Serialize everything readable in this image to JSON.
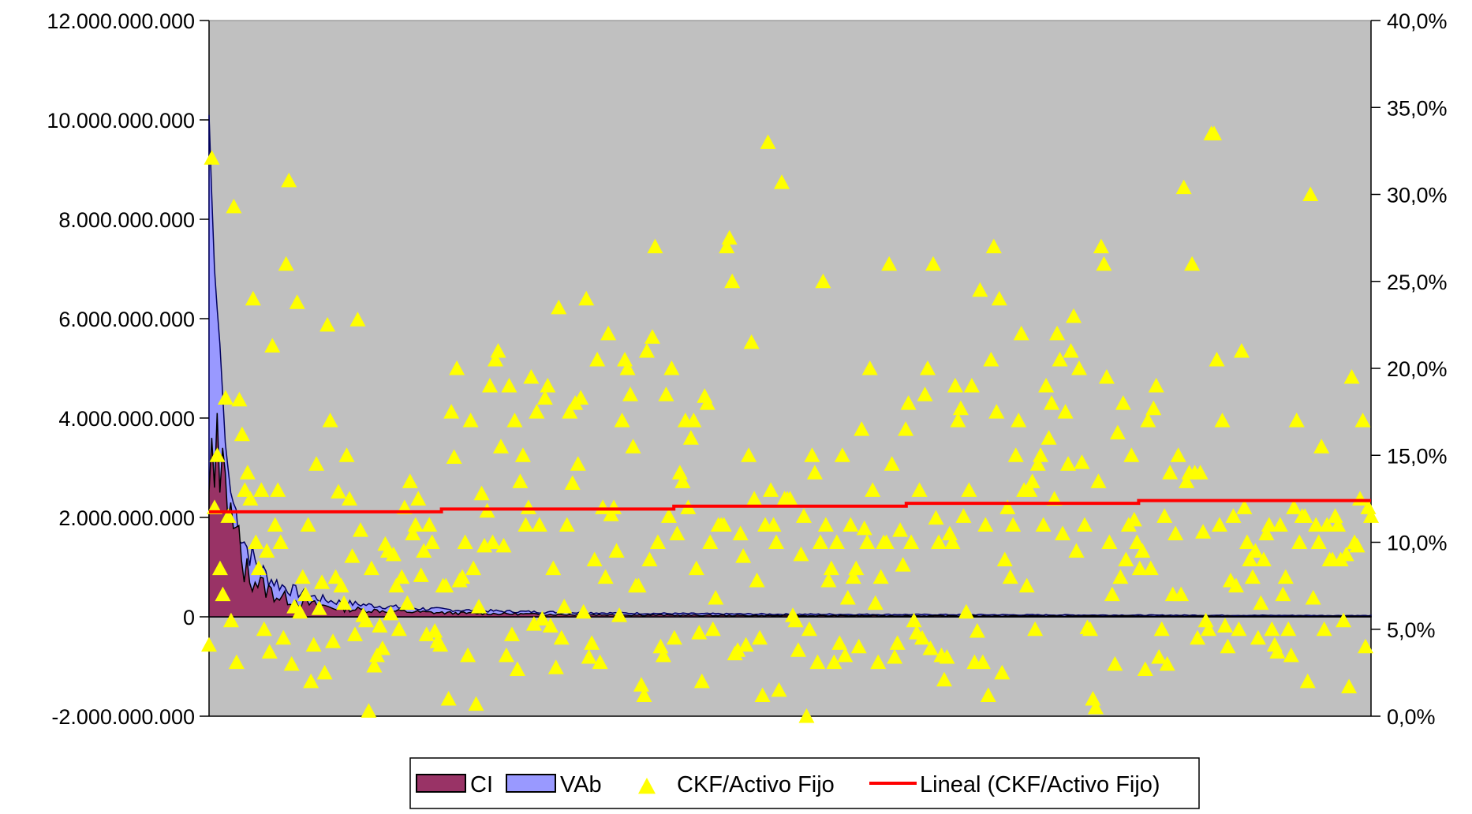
{
  "chart_data": {
    "type": "area",
    "plot_background": "#c0c0c0",
    "left_axis": {
      "ylim": [
        -2000000000,
        12000000000
      ],
      "ticks": [
        {
          "value": -2000000000,
          "label": "-2.000.000.000"
        },
        {
          "value": 0,
          "label": "0"
        },
        {
          "value": 2000000000,
          "label": "2.000.000.000"
        },
        {
          "value": 4000000000,
          "label": "4.000.000.000"
        },
        {
          "value": 6000000000,
          "label": "6.000.000.000"
        },
        {
          "value": 8000000000,
          "label": "8.000.000.000"
        },
        {
          "value": 10000000000,
          "label": "10.000.000.000"
        },
        {
          "value": 12000000000,
          "label": "12.000.000.000"
        }
      ]
    },
    "right_axis": {
      "ylim": [
        0,
        40
      ],
      "ticks": [
        {
          "value": 0,
          "label": "0,0%"
        },
        {
          "value": 5,
          "label": "5,0%"
        },
        {
          "value": 10,
          "label": "10,0%"
        },
        {
          "value": 15,
          "label": "15,0%"
        },
        {
          "value": 20,
          "label": "20,0%"
        },
        {
          "value": 25,
          "label": "25,0%"
        },
        {
          "value": 30,
          "label": "30,0%"
        },
        {
          "value": 35,
          "label": "35,0%"
        },
        {
          "value": 40,
          "label": "40,0%"
        }
      ]
    },
    "x_count": 430,
    "series": [
      {
        "name": "CI",
        "kind": "area",
        "color": "#993366",
        "axis": "left",
        "key_points": [
          [
            0,
            2500000000
          ],
          [
            1,
            3600000000
          ],
          [
            2,
            2600000000
          ],
          [
            3,
            4100000000
          ],
          [
            4,
            2500000000
          ],
          [
            5,
            3400000000
          ],
          [
            6,
            2900000000
          ],
          [
            7,
            1900000000
          ],
          [
            8,
            2300000000
          ],
          [
            9,
            1500000000
          ],
          [
            10,
            1700000000
          ],
          [
            12,
            1100000000
          ],
          [
            14,
            900000000
          ],
          [
            16,
            800000000
          ],
          [
            18,
            700000000
          ],
          [
            20,
            600000000
          ],
          [
            23,
            500000000
          ],
          [
            26,
            400000000
          ],
          [
            30,
            350000000
          ],
          [
            35,
            280000000
          ],
          [
            40,
            230000000
          ],
          [
            45,
            200000000
          ],
          [
            50,
            160000000
          ],
          [
            60,
            130000000
          ],
          [
            70,
            110000000
          ],
          [
            80,
            90000000
          ],
          [
            95,
            70000000
          ],
          [
            110,
            60000000
          ],
          [
            130,
            45000000
          ],
          [
            160,
            35000000
          ],
          [
            200,
            25000000
          ],
          [
            260,
            20000000
          ],
          [
            330,
            15000000
          ],
          [
            429,
            10000000
          ]
        ]
      },
      {
        "name": "VAb",
        "kind": "area",
        "color": "#9999ff",
        "axis": "left",
        "key_points": [
          [
            0,
            10100000000
          ],
          [
            1,
            8500000000
          ],
          [
            2,
            7000000000
          ],
          [
            3,
            6200000000
          ],
          [
            4,
            5500000000
          ],
          [
            5,
            4500000000
          ],
          [
            6,
            3500000000
          ],
          [
            7,
            3000000000
          ],
          [
            8,
            2500000000
          ],
          [
            10,
            2100000000
          ],
          [
            12,
            1700000000
          ],
          [
            14,
            1400000000
          ],
          [
            16,
            1200000000
          ],
          [
            18,
            1000000000
          ],
          [
            20,
            900000000
          ],
          [
            23,
            750000000
          ],
          [
            26,
            650000000
          ],
          [
            30,
            550000000
          ],
          [
            35,
            450000000
          ],
          [
            40,
            380000000
          ],
          [
            45,
            320000000
          ],
          [
            50,
            280000000
          ],
          [
            60,
            230000000
          ],
          [
            70,
            190000000
          ],
          [
            80,
            160000000
          ],
          [
            95,
            130000000
          ],
          [
            110,
            110000000
          ],
          [
            130,
            90000000
          ],
          [
            160,
            70000000
          ],
          [
            200,
            55000000
          ],
          [
            260,
            45000000
          ],
          [
            330,
            35000000
          ],
          [
            429,
            25000000
          ]
        ]
      },
      {
        "name": "CKF/Activo Fijo",
        "kind": "scatter",
        "color": "#ffff00",
        "axis": "right",
        "values": [
          4.1,
          32.1,
          12.0,
          15.0,
          8.5,
          7.0,
          18.3,
          11.5,
          5.5,
          29.3,
          3.1,
          18.2,
          16.2,
          13.0,
          14.0,
          12.5,
          24.0,
          10.0,
          8.5,
          13.0,
          5.0,
          9.5,
          3.7,
          21.3,
          11.0,
          13.0,
          10.0,
          4.5,
          26.0,
          30.8,
          3.0,
          6.3,
          23.8,
          6.0,
          8.0,
          7.0,
          11.0,
          2.0,
          4.1,
          14.5,
          6.2,
          7.7,
          2.5,
          22.5,
          17.0,
          4.3,
          8.0,
          12.9,
          7.5,
          6.5,
          15.0,
          12.5,
          9.2,
          4.7,
          22.8,
          10.7,
          5.8,
          5.5,
          0.3,
          8.5,
          2.9,
          3.5,
          5.2,
          3.9,
          9.9,
          9.5,
          5.9,
          9.3,
          7.5,
          5.0,
          8.0,
          12.0,
          6.5,
          13.5,
          10.5,
          11.0,
          12.5,
          8.1,
          9.5,
          4.7,
          11.0,
          10.0,
          4.9,
          4.3,
          4.1,
          7.5,
          7.5,
          1.0,
          17.5,
          14.9,
          20.0,
          7.8,
          8.0,
          10.0,
          3.5,
          17.0,
          8.5,
          0.7,
          6.3,
          12.8,
          9.8,
          11.8,
          19.0,
          10.0,
          20.5,
          21.0,
          15.5,
          9.8,
          3.5,
          19.0,
          4.7,
          17.0,
          2.7,
          13.5,
          15.0,
          11.0,
          12.0,
          19.5,
          5.3,
          17.5,
          11.0,
          5.6,
          18.3,
          19.0,
          5.2,
          8.5,
          2.8,
          23.5,
          4.5,
          6.3,
          11.0,
          17.5,
          13.4,
          18.0,
          14.5,
          18.3,
          6.0,
          24.0,
          3.4,
          4.2,
          9.0,
          20.5,
          3.1,
          12.0,
          8.0,
          22.0,
          11.6,
          12.0,
          9.5,
          5.8,
          17.0,
          20.5,
          20.0,
          18.5,
          15.5,
          7.5,
          7.5,
          1.8,
          1.2,
          21.0,
          9.0,
          21.8,
          27.0,
          10.0,
          4.0,
          3.5,
          18.5,
          11.5,
          20.0,
          4.5,
          10.5,
          14.0,
          13.5,
          17.0,
          12.0,
          16.0,
          17.0,
          8.5,
          4.8,
          2.0,
          18.4,
          18.0,
          10.0,
          5.0,
          6.8,
          11.0,
          11.0,
          11.0,
          27.0,
          27.5,
          25.0,
          3.6,
          3.8,
          10.5,
          9.2,
          4.1,
          15.0,
          21.5,
          12.5,
          7.8,
          4.5,
          1.2,
          11.0,
          33.0,
          13.0,
          11.0,
          10.0,
          1.5,
          30.7,
          12.5,
          12.5,
          12.5,
          5.8,
          5.5,
          3.8,
          9.3,
          11.5,
          0.0,
          5.0,
          15.0,
          14.0,
          3.1,
          10.0,
          25.0,
          11.0,
          7.8,
          8.5,
          3.1,
          10.0,
          4.2,
          15.0,
          3.5,
          6.8,
          11.0,
          8.0,
          8.5,
          4.0,
          16.5,
          10.8,
          10.0,
          20.0,
          13.0,
          6.5,
          3.1,
          8.0,
          10.0,
          10.0,
          26.0,
          14.5,
          3.4,
          4.2,
          10.7,
          8.7,
          16.5,
          18.0,
          10.0,
          5.5,
          4.8,
          13.0,
          4.5,
          18.5,
          20.0,
          3.9,
          26.0,
          11.4,
          10.0,
          3.5,
          2.1,
          3.4,
          10.5,
          10.0,
          19.0,
          17.0,
          17.7,
          11.5,
          6.0,
          13.0,
          19.0,
          3.1,
          4.9,
          24.5,
          3.1,
          11.0,
          1.2,
          20.5,
          27.0,
          17.5,
          24.0,
          2.5,
          9.0,
          12.0,
          8.0,
          11.0,
          15.0,
          17.0,
          22.0,
          13.0,
          7.5,
          13.0,
          13.5,
          5.0,
          14.5,
          15.0,
          11.0,
          19.0,
          16.0,
          18.0,
          12.5,
          22.0,
          20.5,
          10.5,
          17.5,
          14.5,
          21.0,
          23.0,
          9.5,
          20.0,
          14.6,
          11.0,
          5.1,
          5.0,
          1.0,
          0.5,
          13.5,
          27.0,
          26.0,
          19.5,
          10.0,
          7.0,
          3.0,
          16.3,
          8.0,
          18.0,
          9.0,
          11.0,
          15.0,
          11.3,
          10.0,
          8.5,
          9.5,
          2.7,
          17.0,
          8.5,
          17.7,
          19.0,
          3.4,
          5.0,
          11.5,
          3.0,
          14.0,
          7.0,
          10.5,
          15.0,
          7.0,
          30.4,
          13.5,
          14.0,
          26.0,
          14.0,
          4.5,
          14.0,
          10.6,
          5.5,
          5.0,
          33.5,
          33.5,
          20.5,
          11.0,
          17.0,
          5.2,
          4.0,
          7.8,
          11.5,
          7.5,
          5.0,
          21.0,
          12.0,
          10.0,
          9.0,
          8.0,
          9.5,
          4.5,
          6.5,
          9.0,
          10.5,
          11.0,
          5.0,
          4.1,
          3.7,
          11.0,
          7.0,
          8.0,
          5.0,
          3.5,
          12.0,
          17.0,
          10.0,
          11.5,
          11.5,
          2.0,
          30.0,
          6.8,
          11.0,
          10.0,
          15.5,
          5.0,
          11.0,
          9.0,
          9.0,
          11.5,
          11.0,
          9.0,
          5.5,
          9.3,
          1.7,
          19.5,
          10.0,
          9.8,
          12.5,
          17.0,
          4.0,
          12.0,
          11.5
        ]
      },
      {
        "name": "Lineal (CKF/Activo Fijo)",
        "kind": "line",
        "color": "#ff0000",
        "axis": "right",
        "trend_start": 11.75,
        "trend_end": 12.4
      }
    ],
    "legend": {
      "position": "bottom"
    }
  }
}
